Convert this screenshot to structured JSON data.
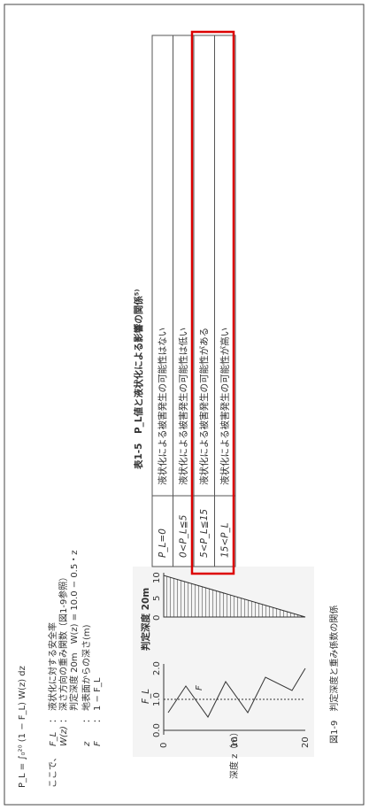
{
  "formula": "P_L = ∫₀²⁰ (1 − F_L) W(z) dz",
  "definitions": [
    {
      "prefix": "ここで、",
      "symbol": "F_L",
      "sep": "：",
      "text": "液状化に対する安全率"
    },
    {
      "prefix": "",
      "symbol": "W(z)",
      "sep": "：",
      "text": "深さ方向の重み関数（図1-9参照）"
    },
    {
      "prefix": "",
      "symbol": "",
      "sep": "",
      "text": "判定深度 20m　W(z) = 10.0 − 0.5・z"
    },
    {
      "prefix": "",
      "symbol": "z",
      "sep": "：",
      "text": "地表面からの深さ(m)"
    },
    {
      "prefix": "",
      "symbol": "F",
      "sep": "：",
      "text": "1 − F_L"
    }
  ],
  "figure": {
    "caption": "図1-9　判定深度と重み係数の関係",
    "fl_label": "F_L",
    "depth_label": "判定深度 20m",
    "f_label": "F",
    "fl_ticks": [
      "0.0",
      "1.0",
      "2.0"
    ],
    "w_ticks": [
      "0",
      "5",
      "10"
    ],
    "z_ticks": [
      "0",
      "10",
      "20"
    ],
    "z_axis": "深度 z（m）"
  },
  "table": {
    "title": "表1-5　P_L値と液状化による影響の関係⁵⁾",
    "rows": [
      [
        "P_L=0",
        "液状化による被害発生の可能性はない"
      ],
      [
        "0<P_L≦5",
        "液状化による被害発生の可能性は低い"
      ],
      [
        "5<P_L≦15",
        "液状化による被害発生の可能性がある"
      ],
      [
        "15<P_L",
        "液状化による被害発生の可能性が高い"
      ]
    ]
  }
}
